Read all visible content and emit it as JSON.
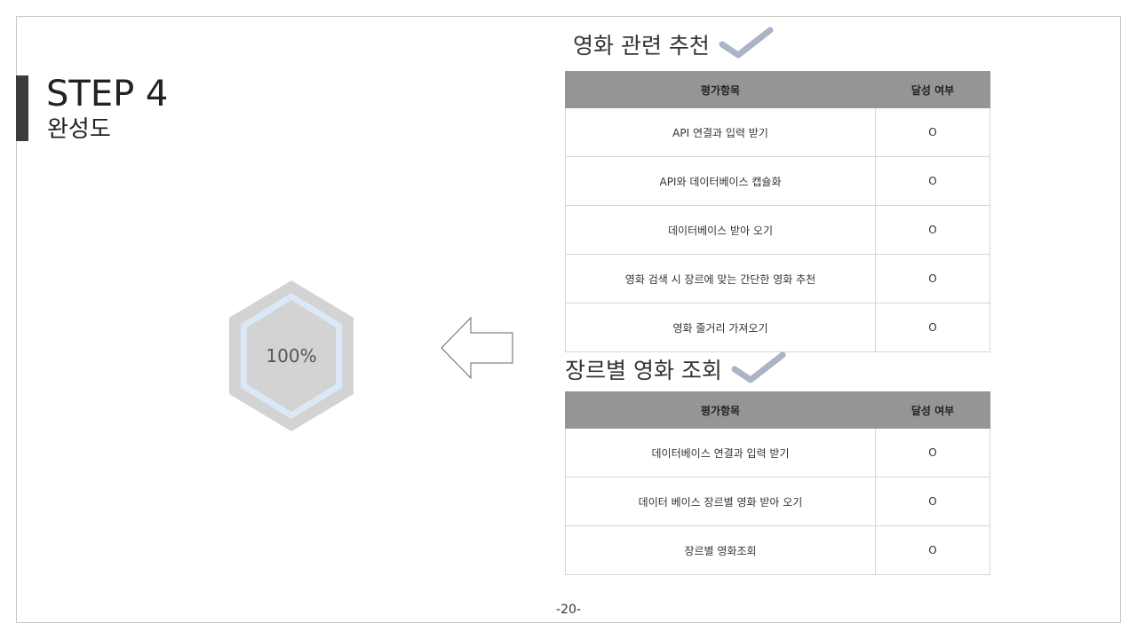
{
  "step": {
    "title": "STEP 4",
    "subtitle": "완성도"
  },
  "progress": {
    "label": "100%",
    "value_percent": 100
  },
  "sections": [
    {
      "title": "영화 관련 추천",
      "headers": {
        "item": "평가항목",
        "result": "달성 여부"
      },
      "rows": [
        {
          "item": "API 연결과 입력 받기",
          "result": "O"
        },
        {
          "item": "API와 데이터베이스 캡슐화",
          "result": "O"
        },
        {
          "item": "데이터베이스 받아 오기",
          "result": "O"
        },
        {
          "item": "영화 검색 시 장르에 맞는 간단한 영화 추천",
          "result": "O"
        },
        {
          "item": "영화 줄거리 가져오기",
          "result": "O"
        }
      ]
    },
    {
      "title": "장르별 영화 조회",
      "headers": {
        "item": "평가항목",
        "result": "달성 여부"
      },
      "rows": [
        {
          "item": "데이터베이스 연결과 입력 받기",
          "result": "O"
        },
        {
          "item": "데이터 베이스 장르별 영화 받아 오기",
          "result": "O"
        },
        {
          "item": "장르별 영화조회",
          "result": "O"
        }
      ]
    }
  ],
  "page_number": "-20-",
  "icons": {
    "section": "checkmark-icon",
    "direction": "left-arrow-icon"
  },
  "colors": {
    "accent_bar": "#3b3b3b",
    "header_bg": "#959595",
    "hex_outer": "#d3d3d3",
    "hex_ring": "#dbe9f6",
    "check": "#aab4c8"
  }
}
